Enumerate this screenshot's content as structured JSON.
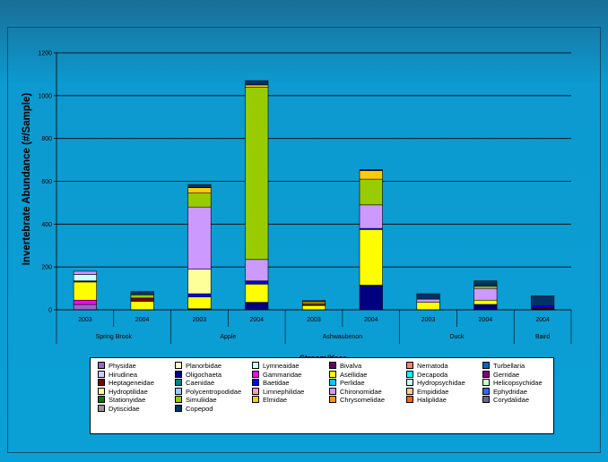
{
  "chart_data": {
    "type": "bar",
    "stacked": true,
    "ylabel": "Invertebrate Abundance (#/Sample)",
    "xlabel": "Stream/Year",
    "ylim": [
      0,
      1200
    ],
    "yticks": [
      0,
      200,
      400,
      600,
      800,
      1000,
      1200
    ],
    "grid": true,
    "legend_position": "bottom",
    "groups": [
      {
        "name": "Spring Brook",
        "years": [
          "2003",
          "2004"
        ]
      },
      {
        "name": "Apple",
        "years": [
          "2003",
          "2004"
        ]
      },
      {
        "name": "Ashwaubenon",
        "years": [
          "2003",
          "2004"
        ]
      },
      {
        "name": "Duck",
        "years": [
          "2003",
          "2004"
        ]
      },
      {
        "name": "Baird",
        "years": [
          "2004"
        ]
      }
    ],
    "categories": [
      "2003",
      "2004",
      "2003",
      "2004",
      "2003",
      "2004",
      "2003",
      "2004",
      "2004"
    ],
    "series": [
      {
        "name": "Physidae",
        "color": "#9966cc",
        "values": [
          25,
          0,
          0,
          0,
          0,
          0,
          0,
          0,
          0
        ]
      },
      {
        "name": "Planorbidae",
        "color": "#ffffcc",
        "values": [
          0,
          0,
          0,
          0,
          0,
          0,
          0,
          0,
          0
        ]
      },
      {
        "name": "Lymneaidae",
        "color": "#ccffff",
        "values": [
          0,
          0,
          0,
          0,
          0,
          0,
          0,
          0,
          0
        ]
      },
      {
        "name": "Bivalva",
        "color": "#660066",
        "values": [
          0,
          0,
          0,
          0,
          0,
          0,
          0,
          0,
          0
        ]
      },
      {
        "name": "Nematoda",
        "color": "#ff8080",
        "values": [
          0,
          0,
          0,
          0,
          0,
          0,
          0,
          0,
          0
        ]
      },
      {
        "name": "Turbellaria",
        "color": "#0066cc",
        "values": [
          0,
          0,
          0,
          0,
          0,
          0,
          0,
          0,
          0
        ]
      },
      {
        "name": "Hirudinea",
        "color": "#ccccff",
        "values": [
          0,
          0,
          0,
          0,
          0,
          0,
          0,
          0,
          0
        ]
      },
      {
        "name": "Oligochaeta",
        "color": "#000080",
        "values": [
          0,
          0,
          5,
          35,
          0,
          115,
          0,
          25,
          5
        ]
      },
      {
        "name": "Gammaridae",
        "color": "#ff00ff",
        "values": [
          20,
          0,
          0,
          0,
          0,
          0,
          0,
          0,
          0
        ]
      },
      {
        "name": "Asellidae",
        "color": "#ffff00",
        "values": [
          85,
          40,
          55,
          85,
          20,
          260,
          35,
          20,
          0
        ]
      },
      {
        "name": "Decapoda",
        "color": "#00ffff",
        "values": [
          0,
          0,
          0,
          0,
          0,
          0,
          0,
          0,
          0
        ]
      },
      {
        "name": "Gerridae",
        "color": "#800080",
        "values": [
          0,
          0,
          0,
          0,
          0,
          0,
          0,
          0,
          0
        ]
      },
      {
        "name": "Heptageneidae",
        "color": "#800000",
        "values": [
          5,
          15,
          0,
          0,
          5,
          0,
          0,
          0,
          5
        ]
      },
      {
        "name": "Caenidae",
        "color": "#008080",
        "values": [
          0,
          0,
          0,
          0,
          0,
          0,
          0,
          0,
          0
        ]
      },
      {
        "name": "Baetidae",
        "color": "#0000ff",
        "values": [
          0,
          0,
          15,
          15,
          0,
          5,
          0,
          0,
          10
        ]
      },
      {
        "name": "Perlidae",
        "color": "#00ccff",
        "values": [
          0,
          0,
          0,
          0,
          0,
          0,
          0,
          0,
          0
        ]
      },
      {
        "name": "Hydropsychidae",
        "color": "#ccffff",
        "values": [
          30,
          0,
          0,
          0,
          0,
          0,
          0,
          0,
          0
        ]
      },
      {
        "name": "Helicopsychidae",
        "color": "#ccffcc",
        "values": [
          0,
          0,
          0,
          0,
          0,
          0,
          0,
          0,
          0
        ]
      },
      {
        "name": "Hydroptilidae",
        "color": "#ffff99",
        "values": [
          0,
          0,
          115,
          0,
          0,
          0,
          0,
          0,
          0
        ]
      },
      {
        "name": "Polycentropodidae",
        "color": "#99ccff",
        "values": [
          0,
          0,
          0,
          0,
          0,
          0,
          0,
          0,
          0
        ]
      },
      {
        "name": "Limnephilidae",
        "color": "#ff99cc",
        "values": [
          0,
          0,
          0,
          0,
          0,
          0,
          0,
          0,
          0
        ]
      },
      {
        "name": "Chironomidae",
        "color": "#cc99ff",
        "values": [
          15,
          0,
          290,
          100,
          0,
          110,
          15,
          55,
          0
        ]
      },
      {
        "name": "Empididae",
        "color": "#ffcc99",
        "values": [
          0,
          0,
          0,
          0,
          0,
          0,
          0,
          0,
          0
        ]
      },
      {
        "name": "Ephydridae",
        "color": "#3366ff",
        "values": [
          0,
          0,
          0,
          0,
          0,
          0,
          0,
          0,
          0
        ]
      },
      {
        "name": "Stationyidae",
        "color": "#008000",
        "values": [
          0,
          0,
          0,
          0,
          0,
          0,
          0,
          0,
          0
        ]
      },
      {
        "name": "Simuliidae",
        "color": "#99cc00",
        "values": [
          0,
          15,
          65,
          805,
          5,
          120,
          0,
          10,
          0
        ]
      },
      {
        "name": "Elmidae",
        "color": "#ffcc00",
        "values": [
          0,
          0,
          25,
          10,
          8,
          40,
          0,
          0,
          0
        ]
      },
      {
        "name": "Chrysomelidae",
        "color": "#ff9900",
        "values": [
          0,
          0,
          0,
          0,
          0,
          0,
          0,
          0,
          0
        ]
      },
      {
        "name": "Haliplidae",
        "color": "#ff6600",
        "values": [
          0,
          0,
          0,
          0,
          0,
          0,
          0,
          0,
          0
        ]
      },
      {
        "name": "Corydalidae",
        "color": "#666699",
        "values": [
          0,
          0,
          0,
          0,
          0,
          0,
          0,
          0,
          0
        ]
      },
      {
        "name": "Dytiscidae",
        "color": "#969696",
        "values": [
          0,
          0,
          0,
          0,
          0,
          0,
          0,
          0,
          0
        ]
      },
      {
        "name": "Copepod",
        "color": "#003366",
        "values": [
          0,
          15,
          15,
          20,
          5,
          5,
          25,
          25,
          45
        ]
      }
    ]
  }
}
